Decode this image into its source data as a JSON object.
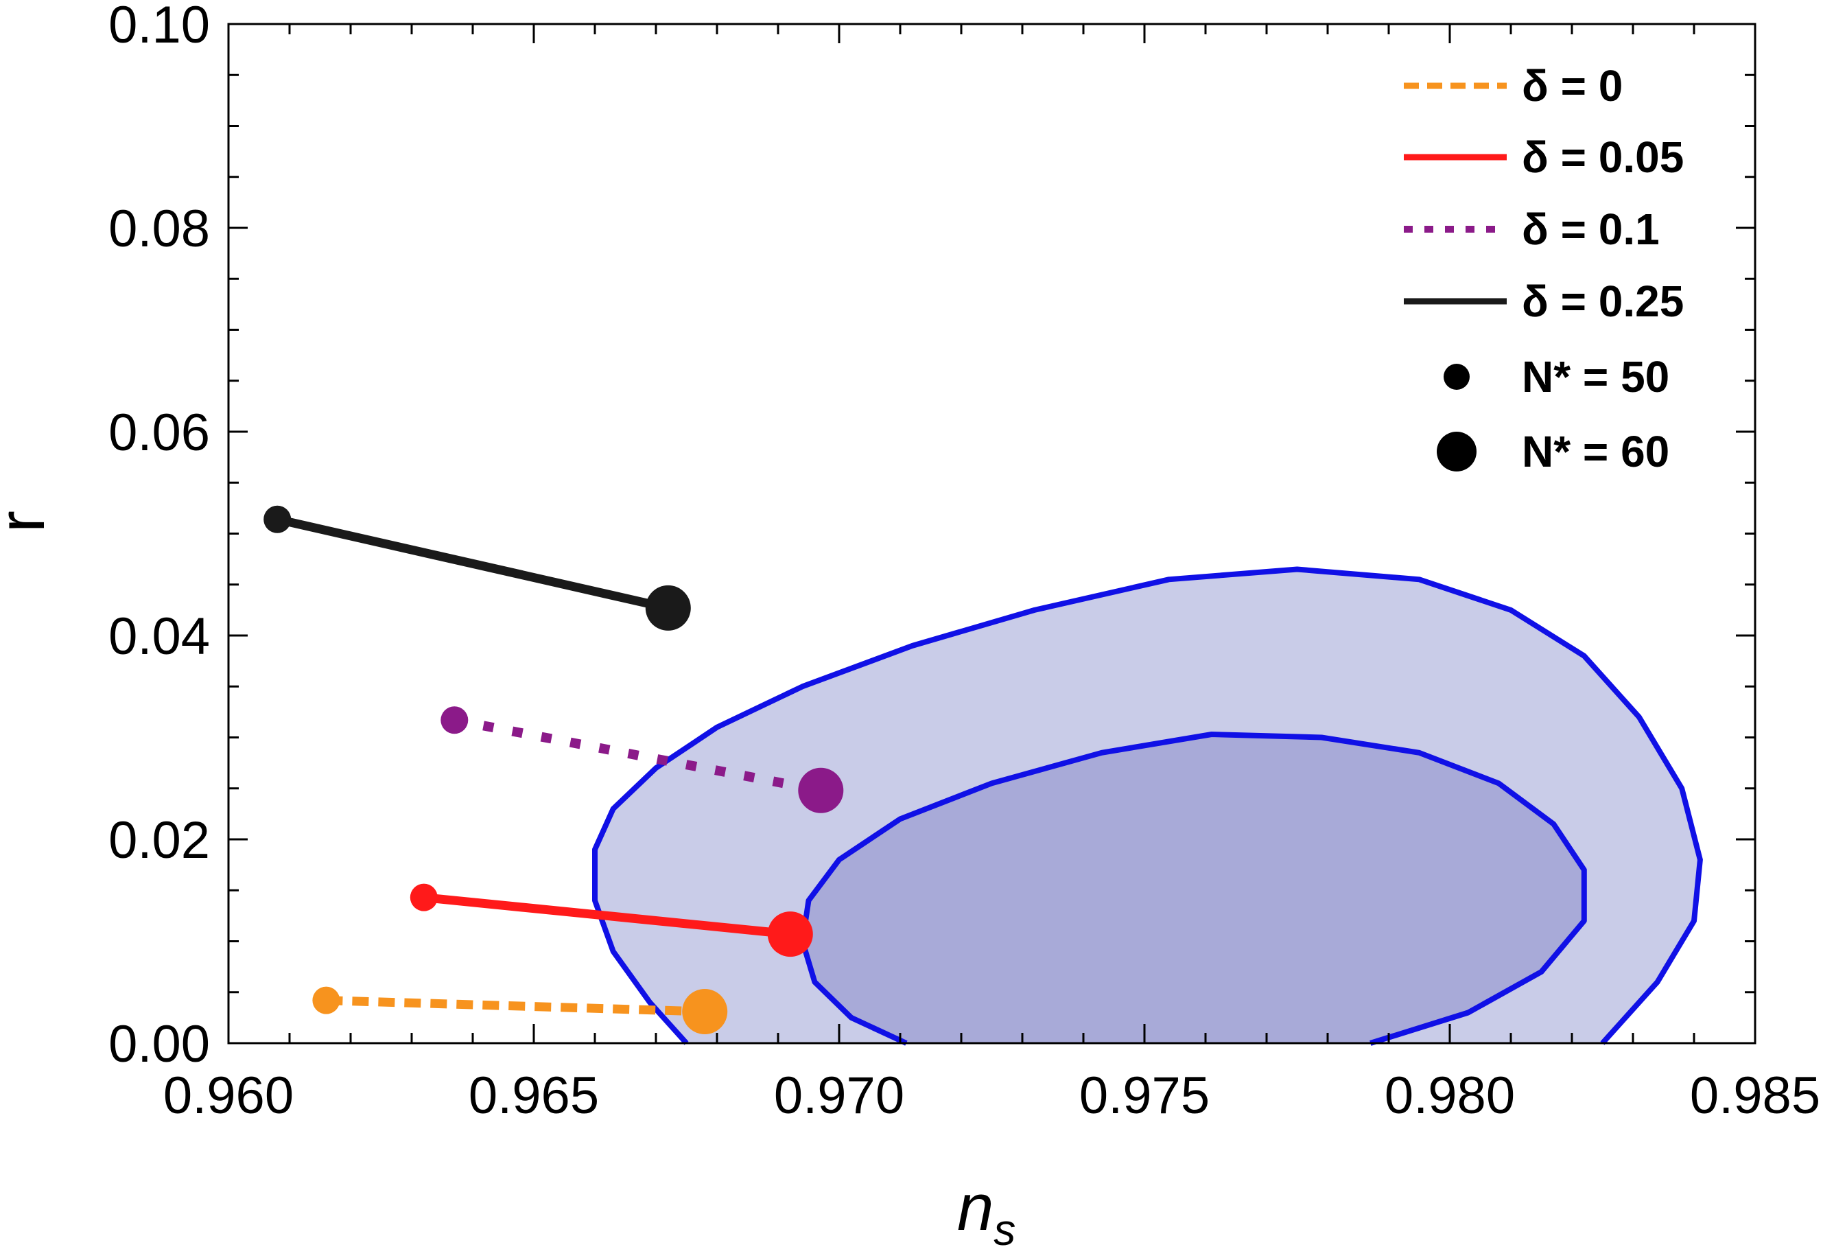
{
  "chart_data": {
    "type": "line",
    "title": "",
    "xlabel_main": "n",
    "xlabel_sub": "s",
    "ylabel": "r",
    "xlim": [
      0.96,
      0.985
    ],
    "ylim": [
      0.0,
      0.1
    ],
    "x_ticks": [
      "0.960",
      "0.965",
      "0.970",
      "0.975",
      "0.980",
      "0.985"
    ],
    "y_ticks": [
      "0.00",
      "0.02",
      "0.04",
      "0.06",
      "0.08",
      "0.10"
    ],
    "x_tick_values": [
      0.96,
      0.965,
      0.97,
      0.975,
      0.98,
      0.985
    ],
    "y_tick_values": [
      0.0,
      0.02,
      0.04,
      0.06,
      0.08,
      0.1
    ],
    "grid": false,
    "legend_position": "top-right",
    "series": [
      {
        "name": "δ = 0",
        "color": "#f7931e",
        "style": "dashed",
        "points": [
          [
            0.9616,
            0.0042
          ],
          [
            0.9678,
            0.0031
          ]
        ]
      },
      {
        "name": "δ = 0.05",
        "color": "#ff1a1a",
        "style": "solid",
        "points": [
          [
            0.9632,
            0.0143
          ],
          [
            0.9692,
            0.0107
          ]
        ]
      },
      {
        "name": "δ = 0.1",
        "color": "#8b1a89",
        "style": "dotted",
        "points": [
          [
            0.9637,
            0.0317
          ],
          [
            0.9697,
            0.0248
          ]
        ]
      },
      {
        "name": "δ = 0.25",
        "color": "#1a1a1a",
        "style": "solid",
        "points": [
          [
            0.9608,
            0.0514
          ],
          [
            0.9672,
            0.0427
          ]
        ]
      }
    ],
    "markers": [
      {
        "name": "N* = 50",
        "size": "small"
      },
      {
        "name": "N* = 60",
        "size": "large"
      }
    ],
    "contours": [
      {
        "level": "outer",
        "fill": "#c9cce8",
        "stroke": "#1010e6",
        "points": [
          [
            0.9675,
            0.0
          ],
          [
            0.9669,
            0.004
          ],
          [
            0.9663,
            0.009
          ],
          [
            0.966,
            0.014
          ],
          [
            0.966,
            0.019
          ],
          [
            0.9663,
            0.023
          ],
          [
            0.967,
            0.027
          ],
          [
            0.968,
            0.031
          ],
          [
            0.9694,
            0.035
          ],
          [
            0.9712,
            0.039
          ],
          [
            0.9732,
            0.0425
          ],
          [
            0.9754,
            0.0455
          ],
          [
            0.9775,
            0.0465
          ],
          [
            0.9795,
            0.0455
          ],
          [
            0.981,
            0.0425
          ],
          [
            0.9822,
            0.038
          ],
          [
            0.9831,
            0.032
          ],
          [
            0.9838,
            0.025
          ],
          [
            0.9841,
            0.018
          ],
          [
            0.984,
            0.012
          ],
          [
            0.9834,
            0.006
          ],
          [
            0.9825,
            0.0
          ]
        ]
      },
      {
        "level": "inner",
        "fill": "#a8aad8",
        "stroke": "#1010e6",
        "points": [
          [
            0.9711,
            0.0
          ],
          [
            0.9702,
            0.0025
          ],
          [
            0.9696,
            0.006
          ],
          [
            0.9694,
            0.01
          ],
          [
            0.9695,
            0.014
          ],
          [
            0.97,
            0.018
          ],
          [
            0.971,
            0.022
          ],
          [
            0.9725,
            0.0255
          ],
          [
            0.9743,
            0.0285
          ],
          [
            0.9761,
            0.0303
          ],
          [
            0.9779,
            0.03
          ],
          [
            0.9795,
            0.0285
          ],
          [
            0.9808,
            0.0255
          ],
          [
            0.9817,
            0.0215
          ],
          [
            0.9822,
            0.017
          ],
          [
            0.9822,
            0.012
          ],
          [
            0.9815,
            0.007
          ],
          [
            0.9803,
            0.003
          ],
          [
            0.9787,
            0.0
          ]
        ]
      }
    ]
  }
}
